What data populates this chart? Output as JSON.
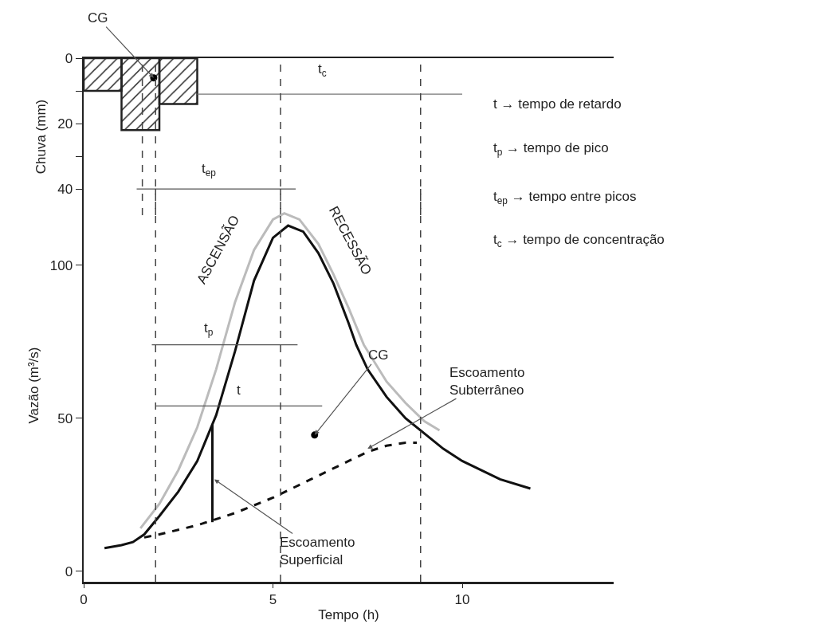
{
  "chart_data": [
    {
      "type": "bar",
      "ylabel": "Chuva (mm)",
      "x": [
        0.5,
        1.5,
        2.5
      ],
      "xlim": [
        0,
        14
      ],
      "ylim": [
        48,
        0
      ],
      "yticks": [
        0,
        {
          "value": 10,
          "label": null
        },
        20,
        {
          "value": 30,
          "label": null
        },
        40
      ],
      "tick_labels": "y",
      "grid": false,
      "legend": false,
      "series": [
        {
          "color": "#222222",
          "values": [
            10,
            22,
            14
          ]
        },
        {
          "type": "scatter",
          "color": "#000000",
          "x": [
            1.85
          ],
          "values": [
            6
          ]
        },
        {
          "type": "line",
          "color": "#777777",
          "x": [
            3,
            10
          ],
          "values": [
            11,
            11
          ]
        },
        {
          "type": "line",
          "color": "#555555",
          "x": [
            1.4,
            5.6
          ],
          "values": [
            40,
            40
          ]
        }
      ],
      "ref_lines": [
        {
          "axis": "x",
          "value": 1.55,
          "color": "#444444",
          "line_style": "dashed"
        },
        {
          "axis": "x",
          "value": 1.9,
          "color": "#444444",
          "line_style": "dashed"
        },
        {
          "axis": "x",
          "value": 5.2,
          "color": "#444444",
          "line_style": "dashed"
        },
        {
          "axis": "x",
          "value": 8.9,
          "color": "#444444",
          "line_style": "dashed"
        }
      ],
      "annotations": [
        {
          "text": "CG",
          "x": 1.85,
          "y": 6
        },
        {
          "text": "t$_{c}$",
          "x": 6.3,
          "y": 11
        },
        {
          "text": "t$_{ep}$",
          "x": 3.3,
          "y": 40
        },
        "t → tempo de retardo",
        "t$_{p}$ → tempo de pico",
        "t$_{ep}$ → tempo entre picos",
        "t$_{c}$ → tempo de concentração"
      ]
    },
    {
      "type": "line",
      "xlabel": "Tempo (h)",
      "ylabel": "Vazão (m³/s)",
      "xlim": [
        0,
        14
      ],
      "xticks": [
        0,
        5,
        10
      ],
      "ylim": [
        -3.5,
        125
      ],
      "yticks": [
        0,
        50,
        100
      ],
      "grid": false,
      "legend": false,
      "series": [
        {
          "color": "#111111",
          "x": [
            0.55,
            1,
            1.3,
            1.6,
            2,
            2.5,
            3,
            3.5,
            4,
            4.5,
            5,
            5.4,
            5.8,
            6.2,
            6.6,
            7,
            7.2,
            7.5,
            8,
            8.5,
            9,
            9.5,
            10,
            10.5,
            11,
            11.8
          ],
          "values": [
            7.5,
            8.5,
            9.5,
            12,
            18,
            26,
            36,
            51,
            72,
            95,
            109,
            113,
            111,
            104,
            94,
            81,
            74,
            66,
            57,
            50,
            45,
            40,
            36,
            33,
            30,
            27
          ]
        },
        {
          "color": "#bbbbbb",
          "x": [
            1.5,
            2,
            2.5,
            3,
            3.5,
            4,
            4.5,
            5,
            5.3,
            5.7,
            6.2,
            6.6,
            7,
            7.4,
            8,
            8.5,
            9,
            9.4
          ],
          "values": [
            14,
            22,
            33,
            47,
            66,
            88,
            105,
            115,
            117,
            115,
            107,
            97,
            86,
            74,
            62,
            55,
            49,
            46
          ]
        },
        {
          "color": "#111111",
          "line_style": "dashed",
          "x": [
            1.6,
            2,
            3,
            4,
            5,
            6,
            7,
            7.5,
            8,
            8.5,
            8.8
          ],
          "values": [
            11,
            12,
            15,
            19,
            24,
            30,
            36,
            39,
            41,
            42,
            42
          ]
        },
        {
          "type": "scatter",
          "color": "#000000",
          "x": [
            6.1
          ],
          "values": [
            44.5
          ]
        },
        {
          "color": "#555555",
          "x": [
            1.8,
            5.65
          ],
          "values": [
            74,
            74
          ]
        },
        {
          "color": "#555555",
          "x": [
            1.9,
            6.3
          ],
          "values": [
            54,
            54
          ]
        },
        {
          "color": "#111111",
          "x": [
            3.4,
            3.4
          ],
          "values": [
            16,
            48
          ]
        }
      ],
      "ref_lines": [
        {
          "axis": "x",
          "value": 1.9,
          "color": "#444444",
          "line_style": "dashed"
        },
        {
          "axis": "x",
          "value": 5.2,
          "color": "#444444",
          "line_style": "dashed"
        },
        {
          "axis": "x",
          "value": 8.9,
          "color": "#444444",
          "line_style": "dashed"
        }
      ],
      "annotations": [
        {
          "text": "ASCENSÃO",
          "x": 4.5,
          "y": 105
        },
        {
          "text": "RECESSÃO",
          "x": 6.2,
          "y": 107
        },
        {
          "text": "t$_{p}$",
          "x": 3.3,
          "y": 74
        },
        {
          "text": "t",
          "x": 4.1,
          "y": 54
        },
        {
          "text": "CG",
          "x": 6.1,
          "y": 44.5
        },
        {
          "text": "Escoamento Subterrâneo",
          "x": 7.5,
          "y": 40
        },
        {
          "text": "Escoamento Superficial",
          "x": 3.45,
          "y": 30
        }
      ]
    }
  ]
}
